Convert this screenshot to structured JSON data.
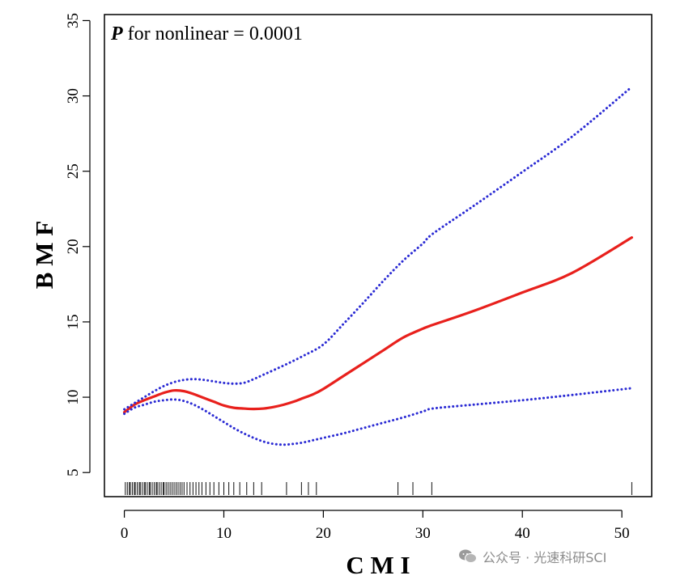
{
  "chart_data": {
    "type": "line",
    "annotation": {
      "p_label": "P",
      "text": " for nonlinear = 0.0001"
    },
    "xlabel": "C M I",
    "ylabel": "B M F",
    "xlim": [
      -2,
      53
    ],
    "ylim": [
      3.4,
      35.4
    ],
    "x_ticks": [
      0,
      10,
      20,
      30,
      40,
      50
    ],
    "y_ticks": [
      5,
      10,
      15,
      20,
      25,
      30,
      35
    ],
    "grid": false,
    "legend": "none",
    "series": [
      {
        "role": "estimate",
        "style": "solid",
        "color": "#e8201c",
        "x": [
          0,
          1,
          2,
          3,
          4,
          5,
          6,
          7,
          8,
          9,
          10,
          11,
          12,
          13,
          14,
          15,
          16,
          17,
          18,
          19,
          20,
          22,
          24,
          26,
          28,
          30,
          31,
          35,
          40,
          45,
          51
        ],
        "y": [
          9.0,
          9.5,
          9.8,
          10.05,
          10.3,
          10.45,
          10.4,
          10.2,
          9.95,
          9.7,
          9.45,
          9.3,
          9.25,
          9.22,
          9.25,
          9.35,
          9.5,
          9.7,
          9.95,
          10.2,
          10.55,
          11.4,
          12.25,
          13.1,
          13.95,
          14.55,
          14.8,
          15.7,
          16.95,
          18.25,
          20.6
        ]
      },
      {
        "role": "upper-ci",
        "style": "dotted",
        "color": "#2b2bd4",
        "x": [
          0,
          1,
          2,
          3,
          4,
          5,
          6,
          7,
          8,
          9,
          10,
          11,
          12,
          13,
          14,
          16,
          18,
          20,
          22,
          24,
          26,
          28,
          30,
          31,
          35,
          40,
          45,
          51
        ],
        "y": [
          9.2,
          9.6,
          10.0,
          10.4,
          10.75,
          11.0,
          11.15,
          11.2,
          11.15,
          11.05,
          10.95,
          10.9,
          10.95,
          11.2,
          11.5,
          12.1,
          12.75,
          13.5,
          14.85,
          16.25,
          17.7,
          19.05,
          20.2,
          20.85,
          22.65,
          24.95,
          27.3,
          30.6
        ]
      },
      {
        "role": "lower-ci",
        "style": "dotted",
        "color": "#2b2bd4",
        "x": [
          0,
          1,
          2,
          3,
          4,
          5,
          6,
          7,
          8,
          9,
          10,
          11,
          12,
          13,
          14,
          15,
          16,
          17,
          18,
          19,
          20,
          22,
          24,
          26,
          28,
          30,
          31,
          35,
          40,
          45,
          51
        ],
        "y": [
          8.9,
          9.3,
          9.5,
          9.7,
          9.8,
          9.85,
          9.75,
          9.5,
          9.15,
          8.75,
          8.35,
          7.95,
          7.6,
          7.3,
          7.05,
          6.9,
          6.85,
          6.9,
          7.0,
          7.15,
          7.3,
          7.6,
          7.95,
          8.3,
          8.65,
          9.05,
          9.25,
          9.5,
          9.8,
          10.15,
          10.6
        ]
      }
    ],
    "rug": {
      "color": "#111111",
      "x": [
        0.1,
        0.3,
        0.5,
        0.6,
        0.8,
        1.0,
        1.1,
        1.3,
        1.5,
        1.6,
        1.8,
        2.0,
        2.1,
        2.3,
        2.5,
        2.6,
        2.8,
        3.0,
        3.2,
        3.3,
        3.5,
        3.7,
        3.9,
        4.0,
        4.2,
        4.4,
        4.6,
        4.8,
        5.0,
        5.2,
        5.4,
        5.6,
        5.8,
        6.0,
        6.3,
        6.6,
        6.9,
        7.2,
        7.5,
        7.8,
        8.2,
        8.6,
        9.0,
        9.5,
        10.0,
        10.5,
        11.0,
        11.6,
        12.3,
        13.0,
        13.8,
        16.3,
        17.8,
        18.5,
        19.3,
        27.5,
        29.0,
        30.9,
        51.0
      ]
    }
  },
  "watermark": {
    "text": "公众号 · 光速科研SCI"
  }
}
